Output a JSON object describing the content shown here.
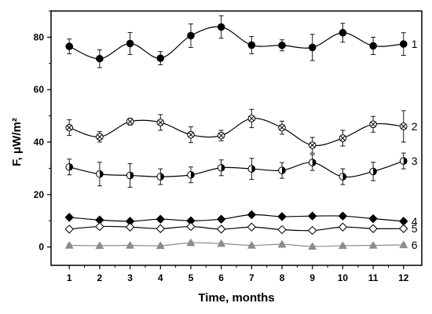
{
  "chart_data": {
    "type": "line",
    "title": "",
    "xlabel": "Time, months",
    "ylabel": "F, μW/m²",
    "x": [
      1,
      2,
      3,
      4,
      5,
      6,
      7,
      8,
      9,
      10,
      11,
      12
    ],
    "x_ticks": [
      "1",
      "2",
      "3",
      "4",
      "5",
      "6",
      "7",
      "8",
      "9",
      "10",
      "11",
      "12"
    ],
    "y_ticks": [
      "0",
      "20",
      "40",
      "60",
      "80"
    ],
    "xlim": [
      0.4,
      12.6
    ],
    "ylim": [
      -7,
      90
    ],
    "grid": false,
    "legend": "none",
    "series": [
      {
        "name": "1",
        "marker": "filled-circle",
        "color": "#000000",
        "values": [
          76.5,
          71.8,
          77.6,
          72.0,
          80.6,
          83.9,
          77.0,
          76.9,
          76.1,
          81.7,
          76.7,
          77.4
        ],
        "errors": [
          2.8,
          3.4,
          4.2,
          2.5,
          4.5,
          4.3,
          3.3,
          2.1,
          5.0,
          3.6,
          3.3,
          4.3
        ]
      },
      {
        "name": "2",
        "marker": "crossed-circle",
        "color": "#000000",
        "values": [
          45.5,
          42.0,
          47.8,
          47.5,
          42.8,
          42.5,
          49.0,
          45.5,
          38.8,
          41.5,
          46.8,
          46.0
        ],
        "errors": [
          3.0,
          2.0,
          1.3,
          3.0,
          3.0,
          2.0,
          3.5,
          2.5,
          3.0,
          3.0,
          3.0,
          6.0
        ]
      },
      {
        "name": "3",
        "marker": "half-circle",
        "color": "#000000",
        "values": [
          30.5,
          27.8,
          27.3,
          26.8,
          27.5,
          30.2,
          29.8,
          29.2,
          32.2,
          26.8,
          28.8,
          32.8
        ],
        "errors": [
          3.0,
          4.5,
          4.5,
          3.0,
          3.0,
          3.0,
          4.0,
          3.0,
          3.0,
          3.0,
          3.5,
          3.0
        ]
      },
      {
        "name": "4",
        "marker": "filled-diamond",
        "color": "#000000",
        "values": [
          11.3,
          10.3,
          9.8,
          10.6,
          10.0,
          10.6,
          12.3,
          11.6,
          11.8,
          11.8,
          10.8,
          9.8
        ],
        "errors": [
          0.8,
          0.8,
          0.8,
          0.8,
          0.8,
          0.8,
          0.8,
          0.8,
          0.8,
          0.8,
          0.8,
          0.8
        ]
      },
      {
        "name": "5",
        "marker": "open-diamond",
        "color": "#000000",
        "values": [
          6.8,
          7.8,
          7.6,
          7.0,
          7.8,
          6.8,
          7.6,
          6.6,
          6.3,
          7.6,
          7.0,
          7.0
        ],
        "errors": [
          0.8,
          0.8,
          0.8,
          0.8,
          0.8,
          0.8,
          0.8,
          0.8,
          0.8,
          0.8,
          0.8,
          0.8
        ]
      },
      {
        "name": "6",
        "marker": "filled-triangle",
        "color": "#8c8c8c",
        "values": [
          0.6,
          0.5,
          0.6,
          0.5,
          1.6,
          1.3,
          0.6,
          1.0,
          0.2,
          0.5,
          0.6,
          0.8
        ],
        "errors": [
          0.5,
          0.5,
          0.5,
          0.5,
          0.6,
          0.5,
          0.5,
          0.5,
          0.5,
          0.5,
          0.5,
          0.5
        ]
      }
    ]
  }
}
